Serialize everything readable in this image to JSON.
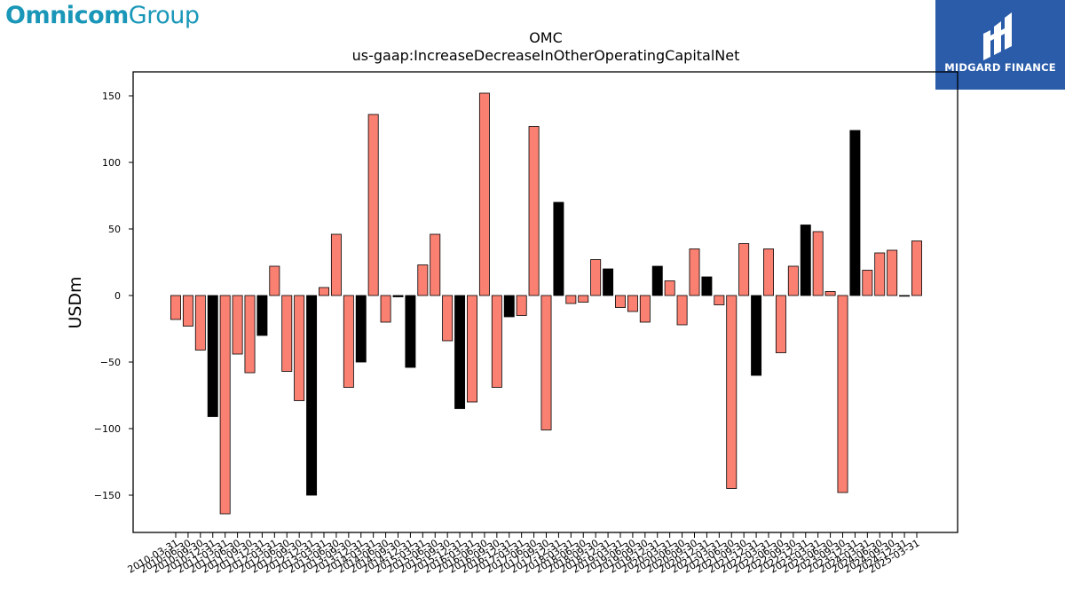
{
  "logos": {
    "left": {
      "bold": "Omnicom",
      "regular": "Group"
    },
    "right": {
      "text": "MIDGARD FINANCE"
    }
  },
  "colors": {
    "positive": "#fa8072",
    "negative": "#000000",
    "bar_edge": "#000000",
    "brand_blue": "#2a5caa",
    "omnicom_teal": "#1a97b8"
  },
  "chart_data": {
    "type": "bar",
    "title": "OMC",
    "subtitle": "us-gaap:IncreaseDecreaseInOtherOperatingCapitalNet",
    "ylabel": "USDm",
    "xlabel": "",
    "ylim": [
      -178,
      168
    ],
    "yticks": [
      150,
      100,
      50,
      0,
      -50,
      -100,
      -150
    ],
    "ytick_labels": [
      "150",
      "100",
      "50",
      "0",
      "−50",
      "−100",
      "−150"
    ],
    "grid": false,
    "categories": [
      "2010-03-31",
      "2010-06-30",
      "2010-09-30",
      "2010-12-31",
      "2011-03-31",
      "2011-06-30",
      "2011-09-30",
      "2011-12-31",
      "2012-03-31",
      "2012-06-30",
      "2012-09-30",
      "2012-12-31",
      "2013-03-31",
      "2013-06-30",
      "2013-09-30",
      "2013-12-31",
      "2014-03-31",
      "2014-06-30",
      "2014-09-30",
      "2014-12-31",
      "2015-03-31",
      "2015-06-30",
      "2015-09-30",
      "2015-12-31",
      "2016-03-31",
      "2016-06-30",
      "2016-09-30",
      "2016-12-31",
      "2017-03-31",
      "2017-06-30",
      "2017-09-30",
      "2017-12-31",
      "2018-03-31",
      "2018-06-30",
      "2018-09-30",
      "2018-12-31",
      "2019-03-31",
      "2019-06-30",
      "2019-09-30",
      "2019-12-31",
      "2020-03-31",
      "2020-06-30",
      "2020-09-30",
      "2020-12-31",
      "2021-03-31",
      "2021-06-30",
      "2021-09-30",
      "2021-12-31",
      "2022-03-31",
      "2022-06-30",
      "2022-09-30",
      "2022-12-31",
      "2023-03-31",
      "2023-06-30",
      "2023-09-30",
      "2023-12-31",
      "2024-03-31",
      "2024-06-30",
      "2024-09-30",
      "2024-12-31",
      "2025-03-31"
    ],
    "values": [
      -18,
      -23,
      -41,
      -91,
      -164,
      -44,
      -58,
      -30,
      22,
      -57,
      -79,
      -150,
      6,
      46,
      -69,
      -50,
      136,
      -20,
      -1,
      -54,
      23,
      46,
      -34,
      -85,
      -80,
      152,
      -69,
      -16,
      -15,
      127,
      -101,
      70,
      -6,
      -5,
      27,
      20,
      -9,
      -12,
      -20,
      22,
      11,
      -22,
      35,
      14,
      -7,
      -145,
      39,
      -60,
      35,
      -43,
      22,
      53,
      48,
      3,
      -148,
      124,
      19,
      32,
      34,
      0,
      41
    ],
    "colors_per_bar": [
      "pos",
      "pos",
      "pos",
      "neg",
      "pos",
      "pos",
      "pos",
      "neg",
      "pos",
      "pos",
      "pos",
      "neg",
      "pos",
      "pos",
      "pos",
      "neg",
      "pos",
      "pos",
      "neg",
      "neg",
      "pos",
      "pos",
      "pos",
      "neg",
      "pos",
      "pos",
      "pos",
      "neg",
      "pos",
      "pos",
      "pos",
      "neg",
      "pos",
      "pos",
      "pos",
      "neg",
      "pos",
      "pos",
      "pos",
      "neg",
      "pos",
      "pos",
      "pos",
      "neg",
      "pos",
      "pos",
      "pos",
      "neg",
      "pos",
      "pos",
      "pos",
      "neg",
      "pos",
      "pos",
      "pos",
      "neg",
      "pos",
      "pos",
      "pos",
      "neg",
      "pos"
    ],
    "xtick_labels_shown": [
      "2010-03-31",
      "2010-06-30",
      "2010-09-30",
      "2010-12-31",
      "2011-03-31",
      "2011-06-30",
      "2011-09-30",
      "2011-12-31",
      "2012-03-31",
      "2012-06-30",
      "2012-09-30",
      "2012-12-31",
      "2013-03-31",
      "2013-06-30",
      "2013-09-30",
      "2013-12-31",
      "2014-03-31",
      "2014-06-30",
      "2014-09-30",
      "2014-12-31",
      "2015-03-31",
      "2015-06-30",
      "2015-09-30",
      "2015-12-31",
      "2016-03-31",
      "2016-06-30",
      "2016-09-30",
      "2016-12-31",
      "2017-03-31",
      "2017-06-30",
      "2017-09-30",
      "2017-12-31",
      "2018-03-31",
      "2018-06-30",
      "2018-09-30",
      "2018-12-31",
      "2019-03-31",
      "2019-06-30",
      "2019-09-30",
      "2019-12-31",
      "2020-03-31",
      "2020-06-30",
      "2020-09-30",
      "2020-12-31",
      "2021-03-31",
      "2021-06-30",
      "2021-09-30",
      "2021-12-31",
      "2022-03-31",
      "2022-06-30",
      "2022-09-30",
      "2022-12-31",
      "2023-03-31",
      "2023-06-30",
      "2023-09-30",
      "2023-12-31",
      "2024-03-31",
      "2024-06-30",
      "2024-09-30",
      "2024-12-31",
      "2025-03-31"
    ]
  }
}
